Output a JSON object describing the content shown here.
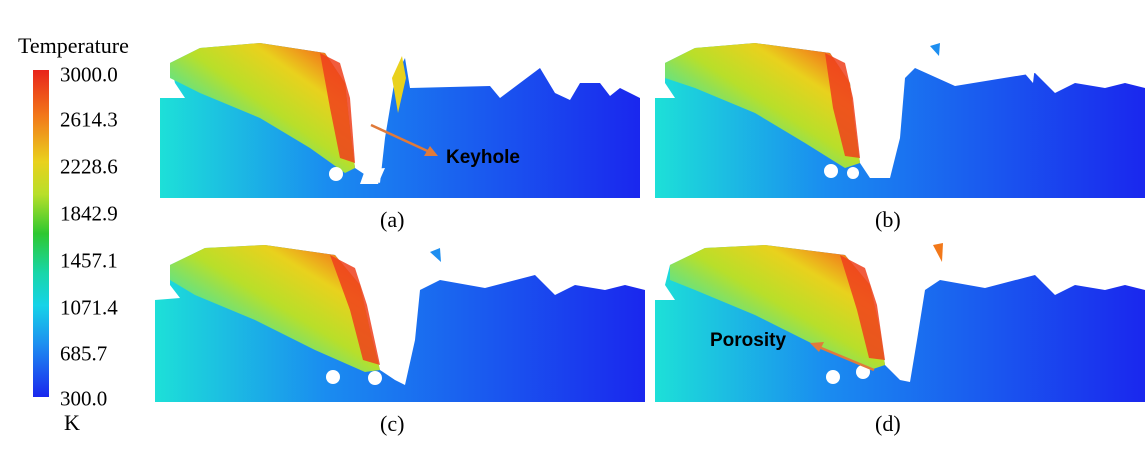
{
  "colorbar": {
    "title": "Temperature",
    "unit": "K",
    "ticks": [
      "3000.0",
      "2614.3",
      "2228.6",
      "1842.9",
      "1457.1",
      "1071.4",
      "685.7",
      "300.0"
    ],
    "colors": [
      "#e8241b",
      "#f2781a",
      "#e9d11d",
      "#2ec830",
      "#16d3e8",
      "#1a27ee"
    ]
  },
  "panels": [
    {
      "caption": "(a)"
    },
    {
      "caption": "(b)"
    },
    {
      "caption": "(c)"
    },
    {
      "caption": "(d)"
    }
  ],
  "annotations": {
    "keyhole": "Keyhole",
    "porosity": "Porosity",
    "arrow_color": "#e07a3a"
  }
}
